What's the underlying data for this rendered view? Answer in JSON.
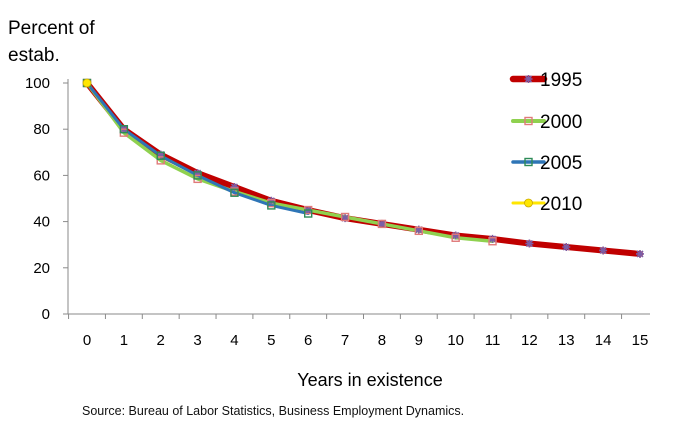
{
  "chart_data": {
    "type": "line",
    "ylabel_lines": [
      "Percent of",
      "estab."
    ],
    "xlabel": "Years in existence",
    "ylim": [
      0,
      100
    ],
    "yticks": [
      0,
      20,
      40,
      60,
      80,
      100
    ],
    "xlim": [
      0,
      15
    ],
    "xticks": [
      0,
      1,
      2,
      3,
      4,
      5,
      6,
      7,
      8,
      9,
      10,
      11,
      12,
      13,
      14,
      15
    ],
    "grid": false,
    "legend_position": "right",
    "series": [
      {
        "name": "1995",
        "color": "#c00000",
        "marker_color": "#7b5ea7",
        "marker": "star",
        "x": [
          0,
          1,
          2,
          3,
          4,
          5,
          6,
          7,
          8,
          9,
          10,
          11,
          12,
          13,
          14,
          15
        ],
        "values": [
          100,
          80,
          69,
          61,
          55,
          49,
          45,
          41.5,
          39,
          36.5,
          34,
          32.5,
          30.5,
          29,
          27.5,
          26
        ]
      },
      {
        "name": "2000",
        "color": "#8fd14f",
        "marker_color": "#e07a7a",
        "marker": "square",
        "x": [
          0,
          1,
          2,
          3,
          4,
          5,
          6,
          7,
          8,
          9,
          10,
          11
        ],
        "values": [
          100,
          78.5,
          66.5,
          58.5,
          53,
          48,
          45,
          42,
          39,
          36,
          33,
          31.5
        ]
      },
      {
        "name": "2005",
        "color": "#2e75b6",
        "marker_color": "#2e8b57",
        "marker": "square",
        "x": [
          0,
          1,
          2,
          3,
          4,
          5,
          6
        ],
        "values": [
          100,
          80,
          68.5,
          60,
          52.5,
          47,
          43.5
        ]
      },
      {
        "name": "2010",
        "color": "#ffe600",
        "marker_color": "#ffe600",
        "marker": "circle",
        "x": [
          0
        ],
        "values": [
          100
        ]
      }
    ]
  },
  "source": "Source: Bureau of Labor Statistics, Business Employment Dynamics."
}
